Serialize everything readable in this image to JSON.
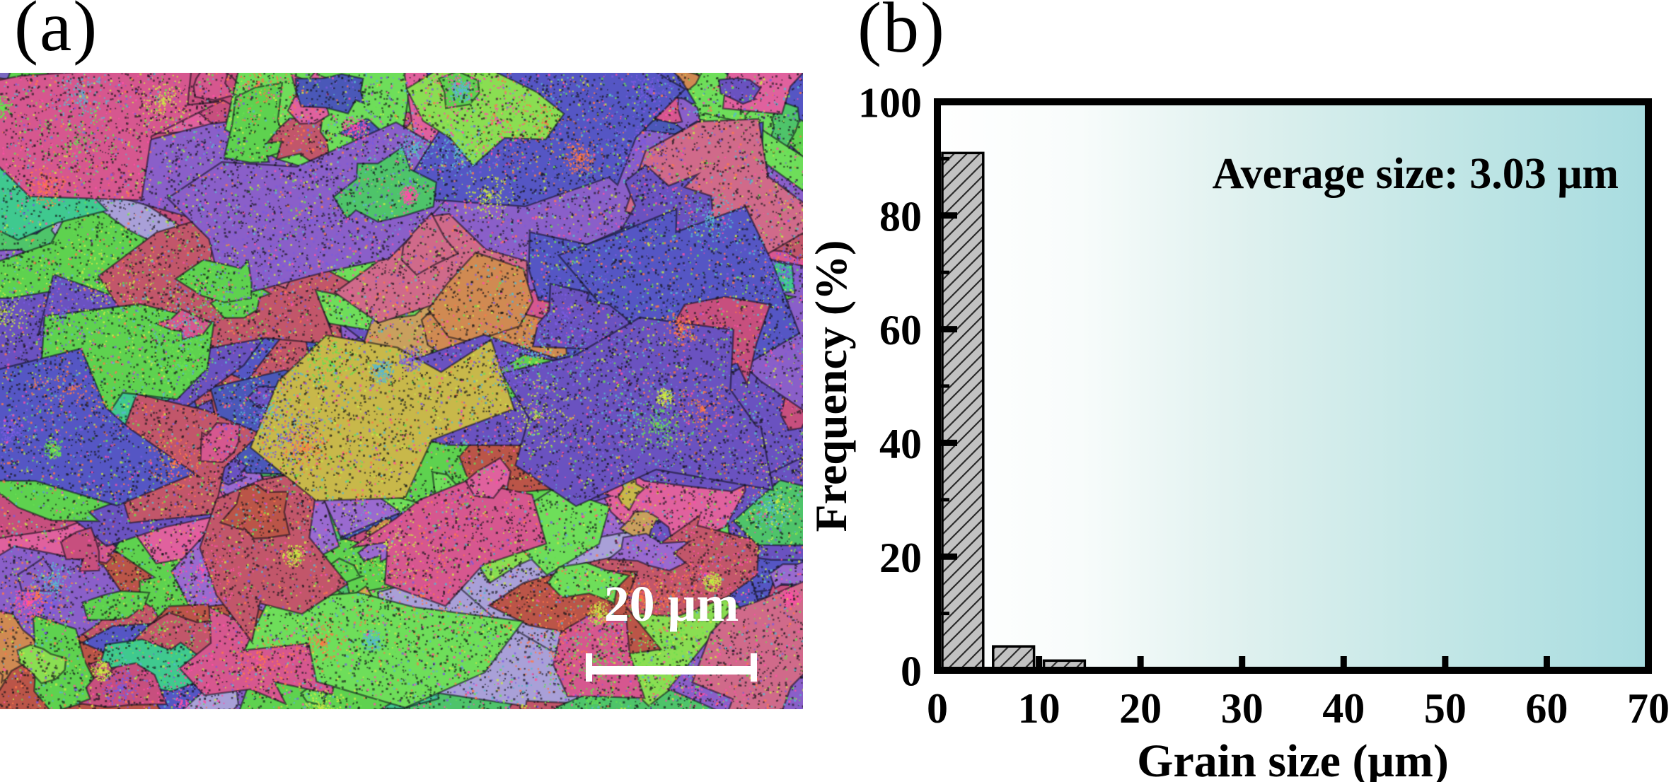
{
  "figure": {
    "panel_a": {
      "label": "(a)",
      "description": "EBSD inverse pole figure orientation map of fine equiaxed grains",
      "scale_bar": {
        "label": "20 μm",
        "color": "#ffffff"
      },
      "grain_palette": [
        {
          "color": "#8a5fc9",
          "w": 3.0
        },
        {
          "color": "#6a52c0",
          "w": 2.2
        },
        {
          "color": "#5556c4",
          "w": 2.2
        },
        {
          "color": "#4a58b8",
          "w": 1.5
        },
        {
          "color": "#9a6ad0",
          "w": 1.5
        },
        {
          "color": "#a9a0d8",
          "w": 0.8
        },
        {
          "color": "#d6578f",
          "w": 2.2
        },
        {
          "color": "#e0619e",
          "w": 1.5
        },
        {
          "color": "#c74f7e",
          "w": 1.6
        },
        {
          "color": "#c2566a",
          "w": 1.4
        },
        {
          "color": "#bb5548",
          "w": 0.8
        },
        {
          "color": "#d06a8a",
          "w": 1.0
        },
        {
          "color": "#5ed24f",
          "w": 2.4
        },
        {
          "color": "#6ede5a",
          "w": 1.8
        },
        {
          "color": "#4ec46a",
          "w": 1.0
        },
        {
          "color": "#8ade52",
          "w": 0.9
        },
        {
          "color": "#3fc98f",
          "w": 0.6
        },
        {
          "color": "#48cfc0",
          "w": 0.4
        },
        {
          "color": "#d08a52",
          "w": 0.7
        },
        {
          "color": "#c9a05e",
          "w": 0.4
        },
        {
          "color": "#c8b84a",
          "w": 0.4
        }
      ],
      "speckle_colors": [
        "#ff4fa8",
        "#cbe845",
        "#67e050",
        "#7a5ae0",
        "#ff7848",
        "#58b8d0"
      ],
      "boundary_color": "#15151a"
    },
    "panel_b": {
      "label": "(b)"
    }
  },
  "chart_data": {
    "type": "bar",
    "title": "",
    "xlabel": "Grain size (μm)",
    "ylabel": "Frequency (%)",
    "annotation": "Average size: 3.03 μm",
    "xlim": [
      0,
      70
    ],
    "ylim": [
      0,
      100
    ],
    "bin_width": 5,
    "bin_starts": [
      0,
      5,
      10,
      15,
      20,
      25,
      30,
      35,
      40,
      45,
      50,
      55,
      60,
      65
    ],
    "values": [
      91,
      4.2,
      1.7,
      0.4,
      0,
      0.4,
      0,
      0,
      0,
      0,
      0,
      0,
      0,
      0
    ],
    "xticks": [
      0,
      10,
      20,
      30,
      40,
      50,
      60,
      70
    ],
    "x_ticks_drawn": [
      10,
      20,
      30,
      40,
      50,
      60
    ],
    "yticks": [
      0,
      20,
      40,
      60,
      80,
      100
    ],
    "y_minor_ticks": [
      10,
      30,
      50,
      70,
      90
    ],
    "grid": false,
    "legend": null,
    "frame_color": "#000000",
    "bar_fill": "#c2c2c2",
    "bar_hatch": "diagonal-forward",
    "hatch_color": "#2b2b2b",
    "background_gradient": {
      "direction": "left-to-right",
      "stops": [
        "#ffffff",
        "#f8fcfb",
        "#ddf0ee",
        "#bfe5e5",
        "#a8dce0"
      ]
    }
  }
}
